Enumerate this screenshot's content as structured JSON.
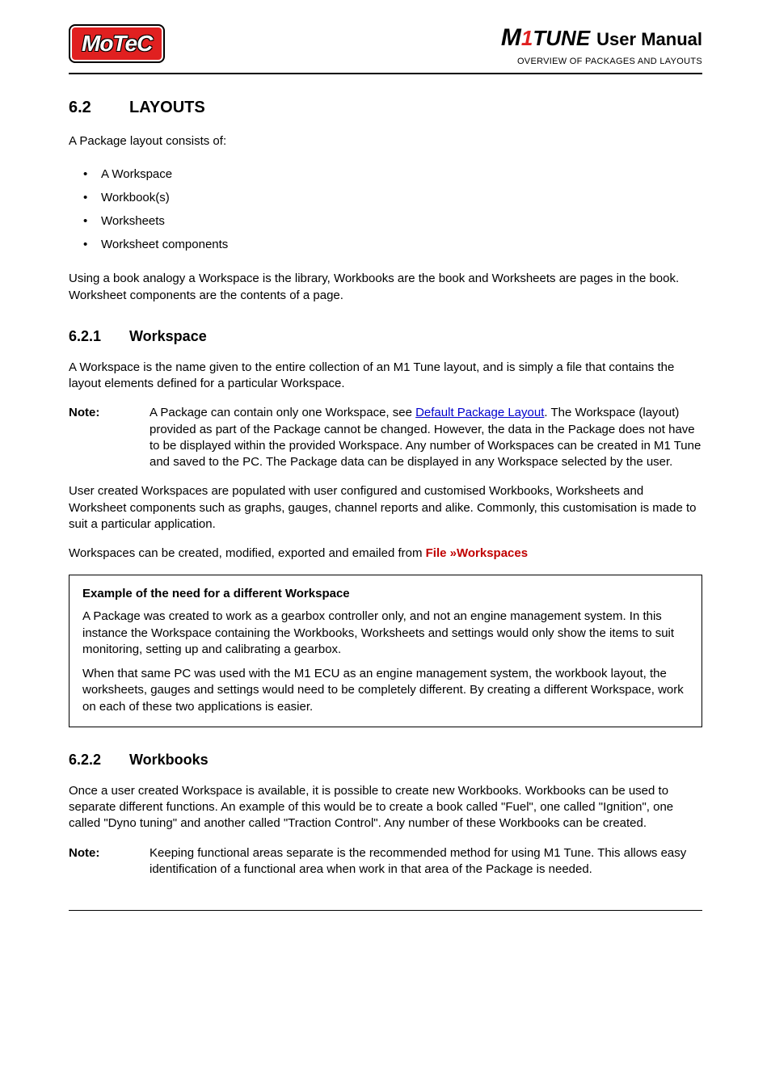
{
  "header": {
    "logo_text": "MoTeC",
    "product_prefix": "M",
    "product_1": "1",
    "product_suffix": "TUNE",
    "user_manual": "User Manual",
    "overview": "OVERVIEW OF PACKAGES AND LAYOUTS"
  },
  "section_62": {
    "number": "6.2",
    "title": "LAYOUTS",
    "intro": "A Package layout consists of:",
    "bullets": [
      "A Workspace",
      "Workbook(s)",
      "Worksheets",
      "Worksheet components"
    ],
    "outro": "Using a book analogy a Workspace is the library, Workbooks are the book and Worksheets are pages in the book. Worksheet components are the contents of a page."
  },
  "section_621": {
    "number": "6.2.1",
    "title": "Workspace",
    "p1": "A Workspace is the name given to the entire collection of an M1 Tune layout, and is simply a file that contains the layout elements defined for a particular Workspace.",
    "note_label": "Note:",
    "note_pre": "A Package can contain only one Workspace, see ",
    "note_link": "Default Package Layout",
    "note_post": ". The Workspace (layout) provided as part of the Package cannot be changed. However, the data in the Package does not have to be displayed within the provided Workspace. Any number of Workspaces can be created in M1 Tune and saved to the PC. The Package data can be displayed in any Workspace selected by the user.",
    "p2": "User created Workspaces are populated with user configured and customised Workbooks, Worksheets and Worksheet components such as graphs, gauges, channel reports and alike. Commonly, this customisation is made to suit a particular application.",
    "p3_pre": "Workspaces can be created, modified, exported and emailed from ",
    "p3_menu": "File »Workspaces",
    "example_title": "Example of the need for a different Workspace",
    "example_p1": "A Package was created to work as a gearbox controller only, and not an engine management system. In this instance the Workspace containing the Workbooks, Worksheets and settings would only show the items to suit monitoring, setting up and calibrating a gearbox.",
    "example_p2": "When that same PC was used with the M1 ECU as an engine management system, the workbook layout, the worksheets, gauges and settings would need to be completely different. By creating a different Workspace, work on each of these two applications is easier."
  },
  "section_622": {
    "number": "6.2.2",
    "title": "Workbooks",
    "p1": "Once a user created Workspace is available, it is possible to create new Workbooks. Workbooks can be used to separate different functions. An example of this would be to create a book called \"Fuel\", one called \"Ignition\", one called \"Dyno tuning\" and another called \"Traction Control\". Any number of these Workbooks can be created.",
    "note_label": "Note:",
    "note_body": "Keeping functional areas separate is the recommended method for using M1 Tune. This allows easy identification of a functional area when work in that area of the Package is needed."
  },
  "colors": {
    "brand_red": "#e02020",
    "menu_red": "#c00000",
    "link_blue": "#0000cc",
    "text": "#000000",
    "background": "#ffffff"
  }
}
